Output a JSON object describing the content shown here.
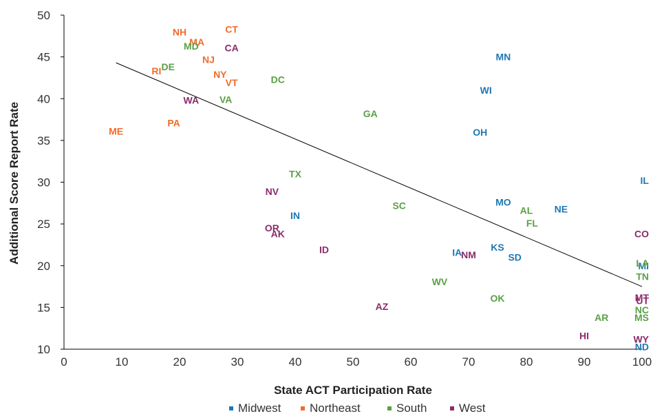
{
  "chart_data": {
    "type": "scatter",
    "xlabel": "State ACT Participation Rate",
    "ylabel": "Additional Score Report Rate",
    "xlim": [
      0,
      100
    ],
    "ylim": [
      10,
      50
    ],
    "x_ticks": [
      0,
      10,
      20,
      30,
      40,
      50,
      60,
      70,
      80,
      90,
      100
    ],
    "y_ticks": [
      10,
      15,
      20,
      25,
      30,
      35,
      40,
      45,
      50
    ],
    "grid": false,
    "legend_position": "bottom",
    "trendline": {
      "x": [
        9,
        100
      ],
      "y": [
        44.3,
        17.5
      ],
      "color": "#000000"
    },
    "series": [
      {
        "name": "Midwest",
        "color": "#1f77b4",
        "points": [
          {
            "label": "MN",
            "x": 76,
            "y": 45
          },
          {
            "label": "WI",
            "x": 73,
            "y": 41
          },
          {
            "label": "OH",
            "x": 72,
            "y": 36
          },
          {
            "label": "IL",
            "x": 100,
            "y": 30.2
          },
          {
            "label": "MO",
            "x": 76,
            "y": 27.6
          },
          {
            "label": "NE",
            "x": 86,
            "y": 26.8
          },
          {
            "label": "IN",
            "x": 40,
            "y": 26
          },
          {
            "label": "KS",
            "x": 75,
            "y": 22.2
          },
          {
            "label": "IA",
            "x": 68,
            "y": 21.6
          },
          {
            "label": "SD",
            "x": 78,
            "y": 21
          },
          {
            "label": "MI",
            "x": 100,
            "y": 20
          },
          {
            "label": "ND",
            "x": 100,
            "y": 10.3
          }
        ]
      },
      {
        "name": "Northeast",
        "color": "#f26b2a",
        "points": [
          {
            "label": "CT",
            "x": 29,
            "y": 48.3
          },
          {
            "label": "NH",
            "x": 20,
            "y": 48
          },
          {
            "label": "MA",
            "x": 23,
            "y": 46.8
          },
          {
            "label": "NJ",
            "x": 25,
            "y": 44.7
          },
          {
            "label": "RI",
            "x": 16,
            "y": 43.3
          },
          {
            "label": "NY",
            "x": 27,
            "y": 42.9
          },
          {
            "label": "VT",
            "x": 29,
            "y": 41.9
          },
          {
            "label": "PA",
            "x": 19,
            "y": 37.1
          },
          {
            "label": "ME",
            "x": 9,
            "y": 36.1
          }
        ]
      },
      {
        "name": "South",
        "color": "#5aa046",
        "points": [
          {
            "label": "MD",
            "x": 22,
            "y": 46.3
          },
          {
            "label": "DE",
            "x": 18,
            "y": 43.8
          },
          {
            "label": "DC",
            "x": 37,
            "y": 42.3
          },
          {
            "label": "VA",
            "x": 28,
            "y": 39.9
          },
          {
            "label": "GA",
            "x": 53,
            "y": 38.2
          },
          {
            "label": "TX",
            "x": 40,
            "y": 31
          },
          {
            "label": "SC",
            "x": 58,
            "y": 27.2
          },
          {
            "label": "AL",
            "x": 80,
            "y": 26.6
          },
          {
            "label": "FL",
            "x": 81,
            "y": 25.1
          },
          {
            "label": "LA",
            "x": 100,
            "y": 20.3
          },
          {
            "label": "TN",
            "x": 100,
            "y": 18.7
          },
          {
            "label": "WV",
            "x": 65,
            "y": 18.1
          },
          {
            "label": "OK",
            "x": 75,
            "y": 16.1
          },
          {
            "label": "NC",
            "x": 100,
            "y": 14.7
          },
          {
            "label": "MS",
            "x": 100,
            "y": 13.8
          },
          {
            "label": "AR",
            "x": 93,
            "y": 13.8
          }
        ]
      },
      {
        "name": "West",
        "color": "#8b2b6b",
        "points": [
          {
            "label": "CA",
            "x": 29,
            "y": 46.1
          },
          {
            "label": "WA",
            "x": 22,
            "y": 39.8
          },
          {
            "label": "NV",
            "x": 36,
            "y": 28.9
          },
          {
            "label": "OR",
            "x": 36,
            "y": 24.5
          },
          {
            "label": "AK",
            "x": 37,
            "y": 23.8
          },
          {
            "label": "CO",
            "x": 100,
            "y": 23.8
          },
          {
            "label": "ID",
            "x": 45,
            "y": 21.9
          },
          {
            "label": "NM",
            "x": 70,
            "y": 21.3
          },
          {
            "label": "MT",
            "x": 100,
            "y": 16.2
          },
          {
            "label": "UT",
            "x": 100,
            "y": 15.8
          },
          {
            "label": "AZ",
            "x": 55,
            "y": 15.1
          },
          {
            "label": "HI",
            "x": 90,
            "y": 11.6
          },
          {
            "label": "WY",
            "x": 100,
            "y": 11.2
          }
        ]
      }
    ]
  }
}
